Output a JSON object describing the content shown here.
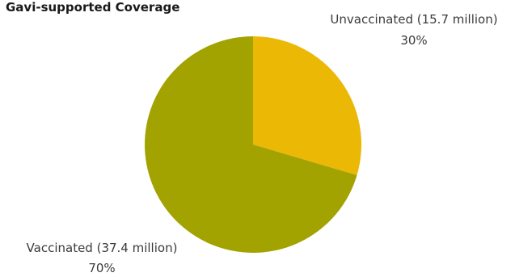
{
  "chart_data": {
    "type": "pie",
    "title": "Gavi-supported Coverage",
    "slices": [
      {
        "label": "Unvaccinated (15.7 million)",
        "percent_label": "30%",
        "value": 15.7,
        "color": "#EBB805"
      },
      {
        "label": "Vaccinated (37.4 million)",
        "percent_label": "70%",
        "value": 37.4,
        "color": "#A2A200"
      }
    ],
    "start": "12 o'clock",
    "direction": "clockwise",
    "legend": "none"
  }
}
